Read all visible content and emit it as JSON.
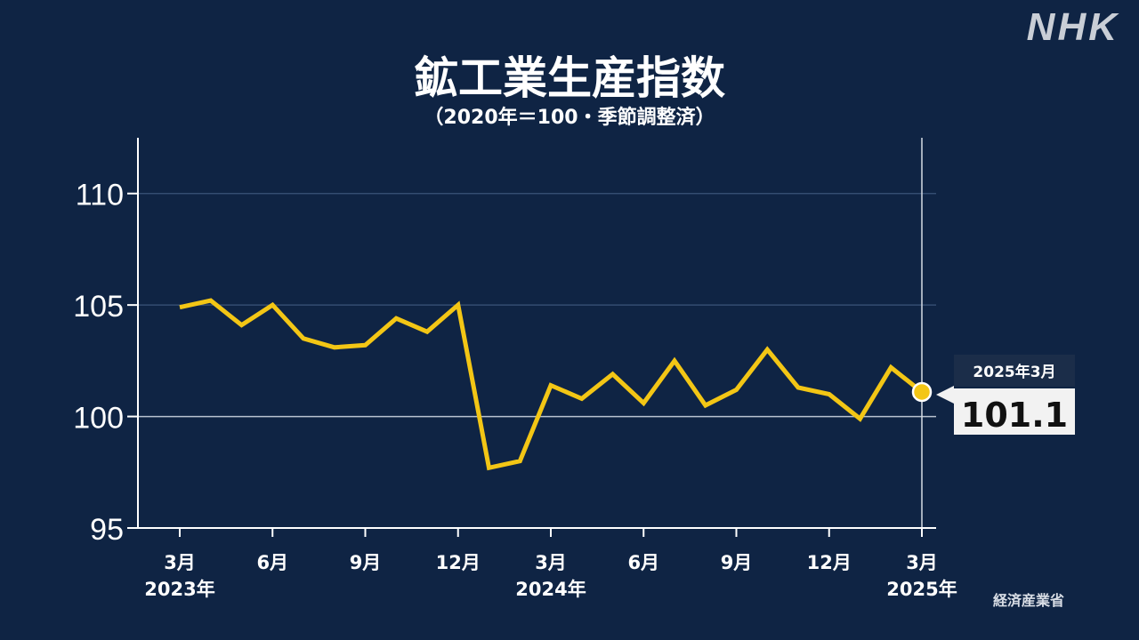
{
  "header": {
    "logo": "NHK",
    "title": "鉱工業生産指数",
    "subtitle": "（2020年＝100・季節調整済）"
  },
  "source": "経済産業省",
  "colors": {
    "background": "#0f2444",
    "line": "#f3c615",
    "axis": "#ffffff",
    "grid": "#3b5479",
    "callout_header": "#1b2d49",
    "callout_body": "#f2f2f2"
  },
  "callout": {
    "date": "2025年3月",
    "value": "101.1"
  },
  "chart_data": {
    "type": "line",
    "title": "鉱工業生産指数",
    "subtitle": "（2020年＝100・季節調整済）",
    "x": [
      "2023-03",
      "2023-04",
      "2023-05",
      "2023-06",
      "2023-07",
      "2023-08",
      "2023-09",
      "2023-10",
      "2023-11",
      "2023-12",
      "2024-01",
      "2024-02",
      "2024-03",
      "2024-04",
      "2024-05",
      "2024-06",
      "2024-07",
      "2024-08",
      "2024-09",
      "2024-10",
      "2024-11",
      "2024-12",
      "2025-01",
      "2025-02",
      "2025-03"
    ],
    "series": [
      {
        "values": [
          104.9,
          105.2,
          104.1,
          105.0,
          103.5,
          103.1,
          103.2,
          104.4,
          103.8,
          105.0,
          97.7,
          98.0,
          101.4,
          100.8,
          101.9,
          100.6,
          102.5,
          100.5,
          101.2,
          103.0,
          101.3,
          101.0,
          99.9,
          102.2,
          101.1
        ]
      }
    ],
    "ylim": [
      95,
      112.5
    ],
    "yticks": [
      95,
      100,
      105,
      110
    ],
    "xticks": [
      {
        "index": 0,
        "month": "3月",
        "year": "2023年"
      },
      {
        "index": 3,
        "month": "6月",
        "year": ""
      },
      {
        "index": 6,
        "month": "9月",
        "year": ""
      },
      {
        "index": 9,
        "month": "12月",
        "year": ""
      },
      {
        "index": 12,
        "month": "3月",
        "year": "2024年"
      },
      {
        "index": 15,
        "month": "6月",
        "year": ""
      },
      {
        "index": 18,
        "month": "9月",
        "year": ""
      },
      {
        "index": 21,
        "month": "12月",
        "year": ""
      },
      {
        "index": 24,
        "month": "3月",
        "year": "2025年"
      }
    ],
    "grid": true,
    "highlight_index": 24
  }
}
